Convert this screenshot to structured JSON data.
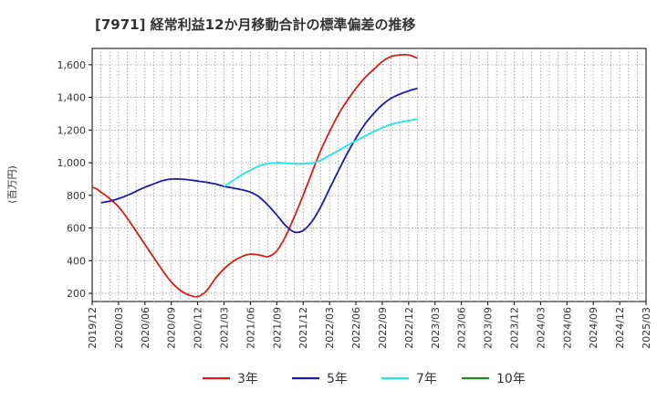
{
  "chart_data": {
    "type": "line",
    "title": "[7971]  経常利益12か月移動合計の標準偏差の推移",
    "ylabel": "(百万円)",
    "ylim": [
      150,
      1700
    ],
    "y_ticks": [
      200,
      400,
      600,
      800,
      1000,
      1200,
      1400,
      1600
    ],
    "y_tick_labels": [
      "200",
      "400",
      "600",
      "800",
      "1,000",
      "1,200",
      "1,400",
      "1,600"
    ],
    "x_tick_labels": [
      "2019/12",
      "2020/03",
      "2020/06",
      "2020/09",
      "2020/12",
      "2021/03",
      "2021/06",
      "2021/09",
      "2021/12",
      "2022/03",
      "2022/06",
      "2022/09",
      "2022/12",
      "2023/03",
      "2023/06",
      "2023/09",
      "2023/12",
      "2024/03",
      "2024/06",
      "2024/09",
      "2024/12",
      "2025/03"
    ],
    "grid": true,
    "legend_position": "bottom",
    "series": [
      {
        "name": "3年",
        "color": "#dd1a1a",
        "points": [
          [
            0,
            850
          ],
          [
            0.5,
            840
          ],
          [
            1,
            820
          ],
          [
            2,
            780
          ],
          [
            3,
            730
          ],
          [
            4,
            660
          ],
          [
            5,
            580
          ],
          [
            6,
            500
          ],
          [
            7,
            420
          ],
          [
            8,
            340
          ],
          [
            9,
            270
          ],
          [
            10,
            220
          ],
          [
            11,
            190
          ],
          [
            12,
            180
          ],
          [
            13,
            215
          ],
          [
            14,
            290
          ],
          [
            15,
            350
          ],
          [
            16,
            395
          ],
          [
            17,
            425
          ],
          [
            18,
            440
          ],
          [
            19,
            435
          ],
          [
            20,
            425
          ],
          [
            21,
            460
          ],
          [
            22,
            550
          ],
          [
            23,
            670
          ],
          [
            24,
            800
          ],
          [
            25,
            940
          ],
          [
            26,
            1075
          ],
          [
            27,
            1190
          ],
          [
            28,
            1295
          ],
          [
            29,
            1380
          ],
          [
            30,
            1455
          ],
          [
            31,
            1520
          ],
          [
            32,
            1570
          ],
          [
            33,
            1620
          ],
          [
            34,
            1650
          ],
          [
            35,
            1660
          ],
          [
            36,
            1660
          ],
          [
            37,
            1640
          ]
        ]
      },
      {
        "name": "5年",
        "color": "#1a1aad",
        "points": [
          [
            1,
            755
          ],
          [
            2,
            765
          ],
          [
            3,
            780
          ],
          [
            4,
            800
          ],
          [
            5,
            825
          ],
          [
            6,
            850
          ],
          [
            7,
            870
          ],
          [
            8,
            890
          ],
          [
            9,
            900
          ],
          [
            10,
            900
          ],
          [
            11,
            895
          ],
          [
            12,
            888
          ],
          [
            13,
            880
          ],
          [
            14,
            870
          ],
          [
            15,
            855
          ],
          [
            16,
            845
          ],
          [
            17,
            835
          ],
          [
            18,
            820
          ],
          [
            19,
            790
          ],
          [
            20,
            740
          ],
          [
            21,
            680
          ],
          [
            22,
            615
          ],
          [
            23,
            575
          ],
          [
            24,
            585
          ],
          [
            25,
            640
          ],
          [
            26,
            730
          ],
          [
            27,
            840
          ],
          [
            28,
            950
          ],
          [
            29,
            1055
          ],
          [
            30,
            1150
          ],
          [
            31,
            1235
          ],
          [
            32,
            1300
          ],
          [
            33,
            1355
          ],
          [
            34,
            1395
          ],
          [
            35,
            1420
          ],
          [
            36,
            1440
          ],
          [
            37,
            1455
          ]
        ]
      },
      {
        "name": "7年",
        "color": "#22e6e6",
        "points": [
          [
            15,
            855
          ],
          [
            16,
            890
          ],
          [
            17,
            925
          ],
          [
            18,
            955
          ],
          [
            19,
            980
          ],
          [
            20,
            995
          ],
          [
            21,
            1000
          ],
          [
            22,
            998
          ],
          [
            23,
            993
          ],
          [
            24,
            993
          ],
          [
            25,
            998
          ],
          [
            26,
            1015
          ],
          [
            27,
            1045
          ],
          [
            28,
            1075
          ],
          [
            29,
            1105
          ],
          [
            30,
            1135
          ],
          [
            31,
            1162
          ],
          [
            32,
            1190
          ],
          [
            33,
            1215
          ],
          [
            34,
            1235
          ],
          [
            35,
            1248
          ],
          [
            36,
            1258
          ],
          [
            37,
            1268
          ]
        ]
      },
      {
        "name": "10年",
        "color": "#1a8c1a",
        "points": []
      }
    ]
  }
}
